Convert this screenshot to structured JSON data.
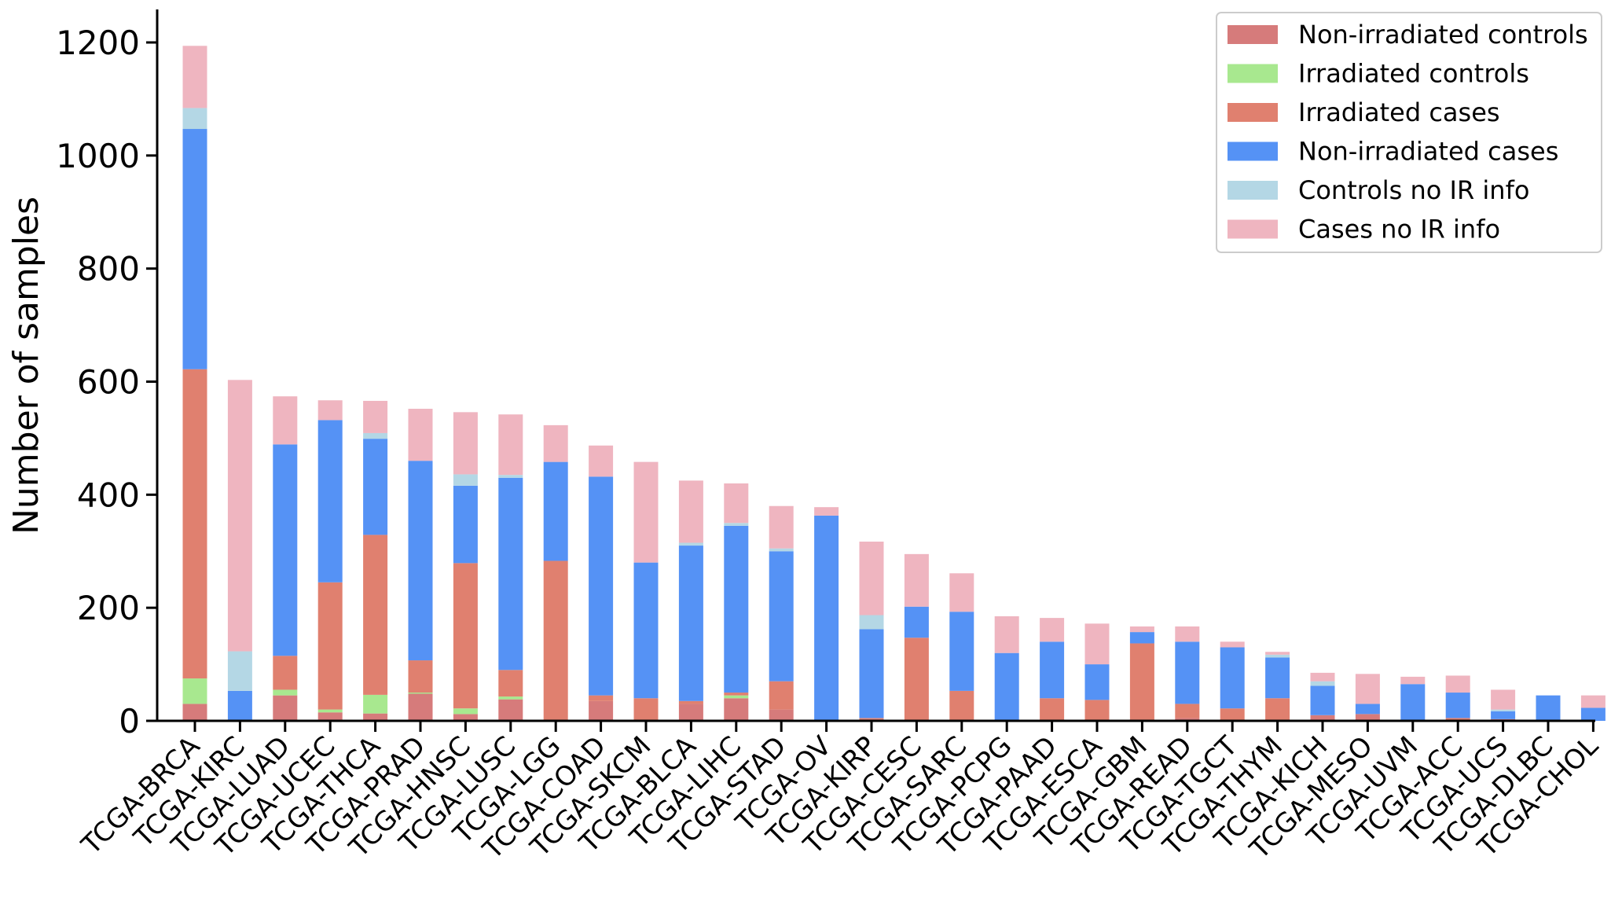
{
  "chart_data": {
    "type": "bar",
    "stacked": true,
    "title": "",
    "xlabel": "",
    "ylabel": "Number of samples",
    "ylim": [
      0,
      1200
    ],
    "yticks": [
      0,
      200,
      400,
      600,
      800,
      1000,
      1200
    ],
    "grid": false,
    "legend_position": "top-right",
    "categories": [
      "TCGA-BRCA",
      "TCGA-KIRC",
      "TCGA-LUAD",
      "TCGA-UCEC",
      "TCGA-THCA",
      "TCGA-PRAD",
      "TCGA-HNSC",
      "TCGA-LUSC",
      "TCGA-LGG",
      "TCGA-COAD",
      "TCGA-SKCM",
      "TCGA-BLCA",
      "TCGA-LIHC",
      "TCGA-STAD",
      "TCGA-OV",
      "TCGA-KIRP",
      "TCGA-CESC",
      "TCGA-SARC",
      "TCGA-PCPG",
      "TCGA-PAAD",
      "TCGA-ESCA",
      "TCGA-GBM",
      "TCGA-READ",
      "TCGA-TGCT",
      "TCGA-THYM",
      "TCGA-KICH",
      "TCGA-MESO",
      "TCGA-UVM",
      "TCGA-ACC",
      "TCGA-UCS",
      "TCGA-DLBC",
      "TCGA-CHOL"
    ],
    "series": [
      {
        "name": "Non-irradiated controls",
        "color": "#d67b7b",
        "values": [
          30,
          0,
          45,
          15,
          13,
          48,
          12,
          38,
          0,
          35,
          0,
          30,
          40,
          20,
          0,
          3,
          0,
          0,
          0,
          0,
          0,
          0,
          5,
          0,
          0,
          10,
          12,
          0,
          0,
          3,
          0,
          0
        ]
      },
      {
        "name": "Irradiated controls",
        "color": "#a8e88f",
        "values": [
          45,
          0,
          10,
          5,
          33,
          2,
          10,
          5,
          0,
          0,
          0,
          0,
          5,
          0,
          0,
          0,
          0,
          0,
          0,
          0,
          0,
          0,
          0,
          0,
          0,
          0,
          0,
          0,
          0,
          0,
          0,
          0
        ]
      },
      {
        "name": "Irradiated cases",
        "color": "#e0806f",
        "values": [
          547,
          0,
          60,
          225,
          283,
          57,
          257,
          47,
          283,
          10,
          40,
          5,
          5,
          50,
          0,
          2,
          147,
          53,
          0,
          40,
          37,
          137,
          25,
          22,
          40,
          0,
          0,
          0,
          5,
          0,
          0,
          0
        ]
      },
      {
        "name": "Non-irradiated cases",
        "color": "#5592f5",
        "values": [
          425,
          53,
          374,
          287,
          170,
          353,
          137,
          340,
          175,
          387,
          240,
          275,
          295,
          230,
          363,
          157,
          55,
          140,
          120,
          100,
          63,
          20,
          110,
          108,
          72,
          52,
          18,
          65,
          45,
          14,
          45,
          23
        ]
      },
      {
        "name": "Controls no IR info",
        "color": "#b4d7e5",
        "values": [
          37,
          70,
          0,
          0,
          10,
          0,
          20,
          5,
          0,
          0,
          0,
          5,
          5,
          5,
          0,
          25,
          0,
          0,
          0,
          0,
          0,
          0,
          0,
          0,
          5,
          8,
          0,
          0,
          0,
          3,
          0,
          0
        ]
      },
      {
        "name": "Cases no IR info",
        "color": "#efb5c0",
        "values": [
          110,
          480,
          85,
          35,
          57,
          92,
          110,
          107,
          65,
          55,
          178,
          110,
          70,
          75,
          15,
          130,
          93,
          68,
          65,
          42,
          72,
          10,
          27,
          10,
          5,
          15,
          53,
          13,
          30,
          35,
          0,
          22
        ]
      }
    ]
  }
}
